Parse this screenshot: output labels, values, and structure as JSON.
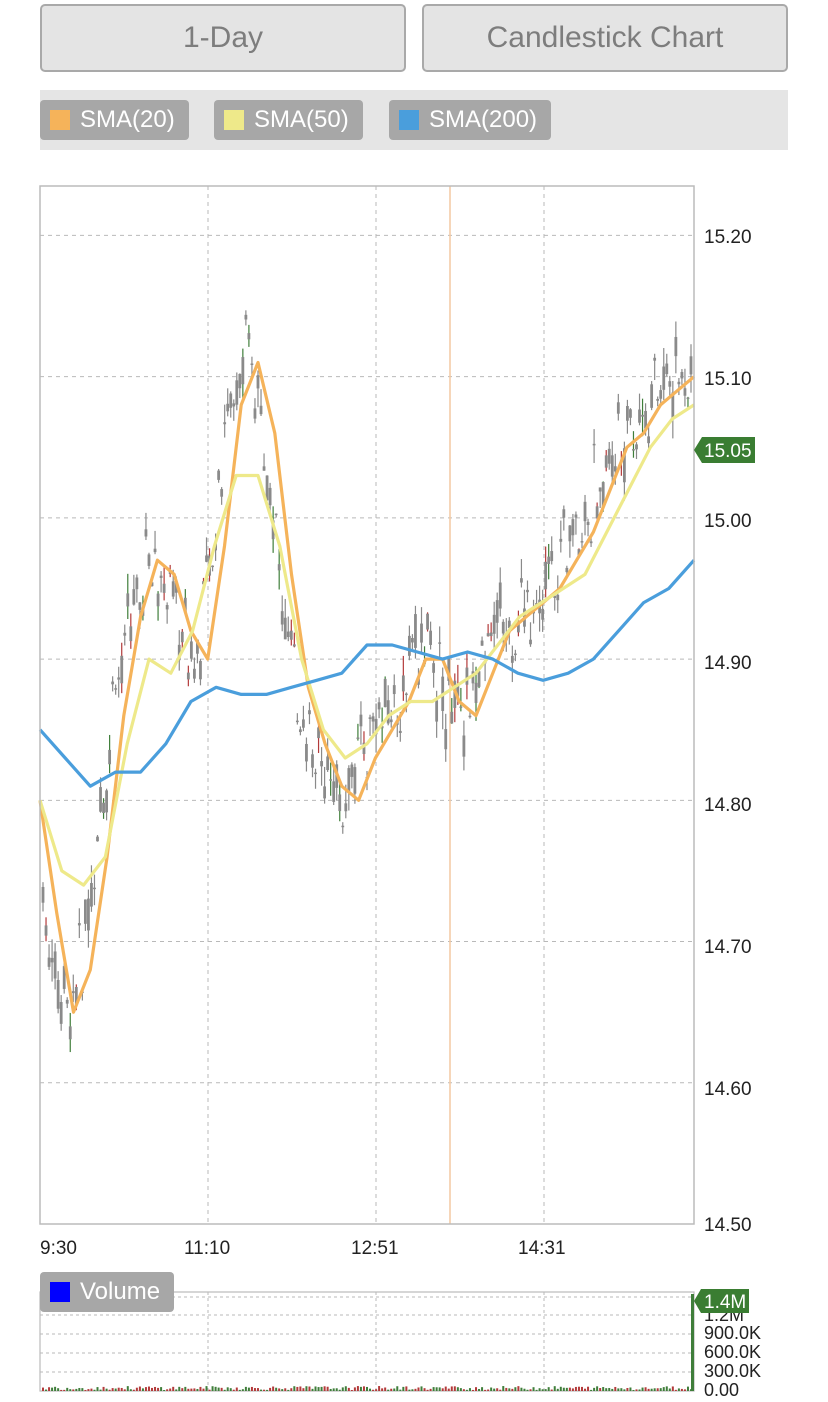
{
  "controls": {
    "period_label": "1-Day",
    "chart_type_label": "Candlestick Chart"
  },
  "legend": [
    {
      "label": "SMA(20)",
      "color": "#f5b35a"
    },
    {
      "label": "SMA(50)",
      "color": "#eee98a"
    },
    {
      "label": "SMA(200)",
      "color": "#4a9edc"
    }
  ],
  "volume_legend": {
    "label": "Volume",
    "color": "#0000ff"
  },
  "last_price_badge": "15.05",
  "volume_badge": "1.4M",
  "chart_data": [
    {
      "type": "candlestick",
      "x_tick_labels": [
        "9:30",
        "11:10",
        "12:51",
        "14:31"
      ],
      "y_tick_labels": [
        "15.20",
        "15.10",
        "15.00",
        "14.90",
        "14.80",
        "14.70",
        "14.60",
        "14.50"
      ],
      "ylim": [
        14.5,
        15.235
      ],
      "grid": true,
      "last_price": 15.05,
      "series": [
        {
          "name": "SMA(20)",
          "color": "#f5b35a",
          "values": [
            14.8,
            14.72,
            14.65,
            14.68,
            14.76,
            14.86,
            14.93,
            14.97,
            14.96,
            14.92,
            14.9,
            14.98,
            15.08,
            15.11,
            15.06,
            14.96,
            14.88,
            14.84,
            14.81,
            14.8,
            14.83,
            14.85,
            14.87,
            14.9,
            14.9,
            14.87,
            14.86,
            14.89,
            14.92,
            14.93,
            14.94,
            14.95,
            14.97,
            14.99,
            15.02,
            15.05,
            15.06,
            15.08,
            15.09,
            15.1
          ]
        },
        {
          "name": "SMA(50)",
          "color": "#eee98a",
          "values": [
            14.8,
            14.75,
            14.74,
            14.76,
            14.84,
            14.9,
            14.89,
            14.92,
            14.98,
            15.03,
            15.03,
            14.98,
            14.9,
            14.85,
            14.83,
            14.84,
            14.86,
            14.87,
            14.87,
            14.88,
            14.89,
            14.91,
            14.93,
            14.94,
            14.95,
            14.96,
            14.99,
            15.02,
            15.05,
            15.07,
            15.08
          ]
        },
        {
          "name": "SMA(200)",
          "color": "#4a9edc",
          "values": [
            14.85,
            14.83,
            14.81,
            14.82,
            14.82,
            14.84,
            14.87,
            14.88,
            14.875,
            14.875,
            14.88,
            14.885,
            14.89,
            14.91,
            14.91,
            14.905,
            14.9,
            14.905,
            14.9,
            14.89,
            14.885,
            14.89,
            14.9,
            14.92,
            14.94,
            14.95,
            14.97
          ]
        }
      ]
    },
    {
      "type": "bar",
      "title": "Volume",
      "y_tick_labels": [
        "1.2M",
        "900.0K",
        "600.0K",
        "300.0K",
        "0.00"
      ],
      "last_value_label": "1.4M"
    }
  ]
}
